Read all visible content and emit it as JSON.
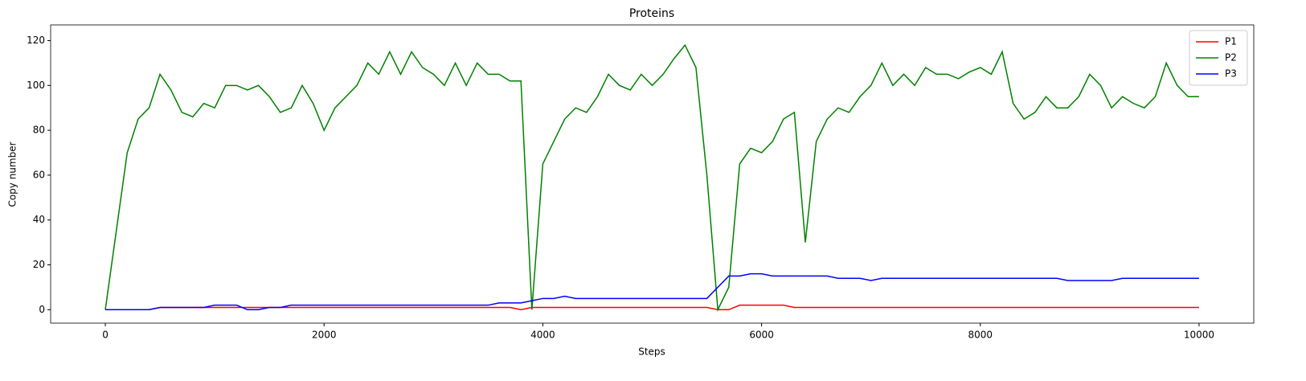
{
  "chart_data": {
    "type": "line",
    "title": "Proteins",
    "x_label": "Steps",
    "y_label": "Copy number",
    "x": [
      0,
      100,
      200,
      300,
      400,
      500,
      600,
      700,
      800,
      900,
      1000,
      1100,
      1200,
      1300,
      1400,
      1500,
      1600,
      1700,
      1800,
      1900,
      2000,
      2100,
      2200,
      2300,
      2400,
      2500,
      2600,
      2700,
      2800,
      2900,
      3000,
      3100,
      3200,
      3300,
      3400,
      3500,
      3600,
      3700,
      3800,
      3900,
      4000,
      4100,
      4200,
      4300,
      4400,
      4500,
      4600,
      4700,
      4800,
      4900,
      5000,
      5100,
      5200,
      5300,
      5400,
      5500,
      5600,
      5700,
      5800,
      5900,
      6000,
      6100,
      6200,
      6300,
      6400,
      6500,
      6600,
      6700,
      6800,
      6900,
      7000,
      7100,
      7200,
      7300,
      7400,
      7500,
      7600,
      7700,
      7800,
      7900,
      8000,
      8100,
      8200,
      8300,
      8400,
      8500,
      8600,
      8700,
      8800,
      8900,
      9000,
      9100,
      9200,
      9300,
      9400,
      9500,
      9600,
      9700,
      9800,
      9900,
      10000
    ],
    "series": [
      {
        "name": "P1",
        "color": "#ff0000",
        "values": [
          0,
          0,
          0,
          0,
          0,
          1,
          1,
          1,
          1,
          1,
          1,
          1,
          1,
          1,
          1,
          1,
          1,
          1,
          1,
          1,
          1,
          1,
          1,
          1,
          1,
          1,
          1,
          1,
          1,
          1,
          1,
          1,
          1,
          1,
          1,
          1,
          1,
          1,
          0,
          1,
          1,
          1,
          1,
          1,
          1,
          1,
          1,
          1,
          1,
          1,
          1,
          1,
          1,
          1,
          1,
          1,
          0,
          0,
          2,
          2,
          2,
          2,
          2,
          1,
          1,
          1,
          1,
          1,
          1,
          1,
          1,
          1,
          1,
          1,
          1,
          1,
          1,
          1,
          1,
          1,
          1,
          1,
          1,
          1,
          1,
          1,
          1,
          1,
          1,
          1,
          1,
          1,
          1,
          1,
          1,
          1,
          1,
          1,
          1,
          1,
          1
        ]
      },
      {
        "name": "P2",
        "color": "#008000",
        "values": [
          0,
          35,
          70,
          85,
          90,
          105,
          98,
          88,
          86,
          92,
          90,
          100,
          100,
          98,
          100,
          95,
          88,
          90,
          100,
          92,
          80,
          90,
          95,
          100,
          110,
          105,
          115,
          105,
          115,
          108,
          105,
          100,
          110,
          100,
          110,
          105,
          105,
          102,
          102,
          0,
          65,
          75,
          85,
          90,
          88,
          95,
          105,
          100,
          98,
          105,
          100,
          105,
          112,
          118,
          108,
          60,
          0,
          10,
          65,
          72,
          70,
          75,
          85,
          88,
          30,
          75,
          85,
          90,
          88,
          95,
          100,
          110,
          100,
          105,
          100,
          108,
          105,
          105,
          103,
          106,
          108,
          105,
          115,
          92,
          85,
          88,
          95,
          90,
          90,
          95,
          105,
          100,
          90,
          95,
          92,
          90,
          95,
          110,
          100,
          95,
          95
        ]
      },
      {
        "name": "P3",
        "color": "#0000ff",
        "values": [
          0,
          0,
          0,
          0,
          0,
          1,
          1,
          1,
          1,
          1,
          2,
          2,
          2,
          0,
          0,
          1,
          1,
          2,
          2,
          2,
          2,
          2,
          2,
          2,
          2,
          2,
          2,
          2,
          2,
          2,
          2,
          2,
          2,
          2,
          2,
          2,
          3,
          3,
          3,
          4,
          5,
          5,
          6,
          5,
          5,
          5,
          5,
          5,
          5,
          5,
          5,
          5,
          5,
          5,
          5,
          5,
          10,
          15,
          15,
          16,
          16,
          15,
          15,
          15,
          15,
          15,
          15,
          14,
          14,
          14,
          13,
          14,
          14,
          14,
          14,
          14,
          14,
          14,
          14,
          14,
          14,
          14,
          14,
          14,
          14,
          14,
          14,
          14,
          13,
          13,
          13,
          13,
          13,
          14,
          14,
          14,
          14,
          14,
          14,
          14,
          14
        ]
      }
    ],
    "xlim": [
      -500,
      10500
    ],
    "ylim": [
      -6,
      127
    ],
    "xticks": [
      0,
      2000,
      4000,
      6000,
      8000,
      10000
    ],
    "yticks": [
      0,
      20,
      40,
      60,
      80,
      100,
      120
    ],
    "legend": "upper right"
  }
}
